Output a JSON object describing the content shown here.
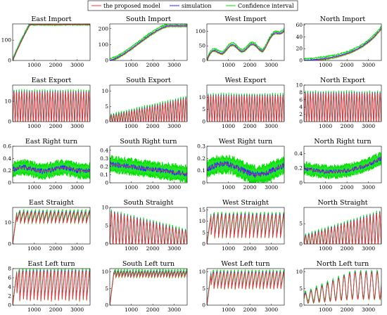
{
  "legend": {
    "placement": "top-center",
    "entries": [
      {
        "label": "the proposed model",
        "color": "#ff3030"
      },
      {
        "label": "simulation",
        "color": "#2a2aff"
      },
      {
        "label": "Confidence interval",
        "color": "#00e000"
      }
    ]
  },
  "chart_data": [
    {
      "type": "line",
      "title": "East Import",
      "xlim": [
        0,
        3600
      ],
      "ylim": [
        0,
        180
      ],
      "xticks": [
        1000,
        2000,
        3000
      ],
      "yticks": [
        0,
        100
      ],
      "shape": "saturate",
      "lo": 0,
      "hi": 180,
      "t1": 800
    },
    {
      "type": "line",
      "title": "South Import",
      "xlim": [
        0,
        3600
      ],
      "ylim": [
        0,
        230
      ],
      "xticks": [
        1000,
        2000,
        3000
      ],
      "yticks": [
        0,
        100,
        200
      ],
      "shape": "ramp",
      "lo": 0,
      "hi": 220,
      "t1": 2700
    },
    {
      "type": "line",
      "title": "West Import",
      "xlim": [
        0,
        3600
      ],
      "ylim": [
        0,
        125
      ],
      "xticks": [
        1000,
        2000,
        3000
      ],
      "yticks": [
        0,
        50,
        100
      ],
      "shape": "westimport",
      "lo": 0,
      "hi": 120
    },
    {
      "type": "line",
      "title": "North Import",
      "xlim": [
        0,
        3600
      ],
      "ylim": [
        0,
        62
      ],
      "xticks": [
        1000,
        2000,
        3000
      ],
      "yticks": [
        0,
        20,
        40,
        60
      ],
      "shape": "exp",
      "lo": 0,
      "hi": 55
    },
    {
      "type": "line",
      "title": "East Export",
      "xlim": [
        0,
        3600
      ],
      "ylim": [
        0,
        18
      ],
      "xticks": [
        1000,
        2000,
        3000
      ],
      "yticks": [
        0,
        10
      ],
      "shape": "osc",
      "lo": 0,
      "hi": 15,
      "cycles": 30
    },
    {
      "type": "line",
      "title": "South Export",
      "xlim": [
        0,
        3600
      ],
      "ylim": [
        0,
        12
      ],
      "xticks": [
        1000,
        2000,
        3000
      ],
      "yticks": [
        0,
        5,
        10
      ],
      "shape": "oscgrow",
      "lo": 0,
      "hi": 8,
      "cycles": 30
    },
    {
      "type": "line",
      "title": "West Export",
      "xlim": [
        0,
        3600
      ],
      "ylim": [
        0,
        15
      ],
      "xticks": [
        1000,
        2000,
        3000
      ],
      "yticks": [
        0,
        5,
        10
      ],
      "shape": "osc",
      "lo": 0,
      "hi": 11,
      "cycles": 30
    },
    {
      "type": "line",
      "title": "North Export",
      "xlim": [
        0,
        3600
      ],
      "ylim": [
        0,
        10
      ],
      "xticks": [
        1000,
        2000,
        3000
      ],
      "yticks": [
        0,
        2,
        4,
        6,
        8,
        10
      ],
      "shape": "osc",
      "lo": 0,
      "hi": 8,
      "cycles": 30
    },
    {
      "type": "line",
      "title": "East Right turn",
      "xlim": [
        0,
        3600
      ],
      "ylim": [
        0,
        0.6
      ],
      "xticks": [
        1000,
        2000,
        3000
      ],
      "yticks": [
        0,
        0.2,
        0.4,
        0.6
      ],
      "shape": "noisy",
      "mid": 0.22,
      "amp": 0.1
    },
    {
      "type": "line",
      "title": "South Right turn",
      "xlim": [
        0,
        3600
      ],
      "ylim": [
        0,
        0.45
      ],
      "xticks": [
        1000,
        2000,
        3000
      ],
      "yticks": [
        0,
        0.1,
        0.2,
        0.3,
        0.4
      ],
      "shape": "noisydecay",
      "mid": 0.2,
      "amp": 0.08
    },
    {
      "type": "line",
      "title": "West Right turn",
      "xlim": [
        0,
        3600
      ],
      "ylim": [
        0,
        0.3
      ],
      "xticks": [
        1000,
        2000,
        3000
      ],
      "yticks": [
        0,
        0.1,
        0.2,
        0.3
      ],
      "shape": "noisywave",
      "mid": 0.11,
      "amp": 0.06
    },
    {
      "type": "line",
      "title": "North Right turn",
      "xlim": [
        0,
        3600
      ],
      "ylim": [
        0,
        0.5
      ],
      "xticks": [
        1000,
        2000,
        3000
      ],
      "yticks": [
        0,
        0.2,
        0.4
      ],
      "shape": "noisyvalley",
      "mid": 0.15,
      "amp": 0.07
    },
    {
      "type": "line",
      "title": "East Straight",
      "xlim": [
        0,
        3600
      ],
      "ylim": [
        0,
        17
      ],
      "xticks": [
        1000,
        2000,
        3000
      ],
      "yticks": [
        0,
        10
      ],
      "shape": "oscsat",
      "lo": 10,
      "hi": 15,
      "cycles": 20
    },
    {
      "type": "line",
      "title": "South Straight",
      "xlim": [
        0,
        3600
      ],
      "ylim": [
        0,
        10
      ],
      "xticks": [
        1000,
        2000,
        3000
      ],
      "yticks": [
        0,
        5,
        10
      ],
      "shape": "oscdecay",
      "lo": 0,
      "hi": 9,
      "cycles": 24
    },
    {
      "type": "line",
      "title": "West Straight",
      "xlim": [
        0,
        3600
      ],
      "ylim": [
        0,
        16
      ],
      "xticks": [
        1000,
        2000,
        3000
      ],
      "yticks": [
        0,
        5,
        10,
        15
      ],
      "shape": "oscsat",
      "lo": 3,
      "hi": 13,
      "cycles": 20
    },
    {
      "type": "line",
      "title": "North Straight",
      "xlim": [
        0,
        3600
      ],
      "ylim": [
        0,
        9
      ],
      "xticks": [
        1000,
        2000,
        3000
      ],
      "yticks": [
        0,
        5
      ],
      "shape": "oscgrow",
      "lo": 0,
      "hi": 8,
      "cycles": 24
    },
    {
      "type": "line",
      "title": "East Left turn",
      "xlim": [
        0,
        3600
      ],
      "ylim": [
        0,
        8
      ],
      "xticks": [
        1000,
        2000,
        3000
      ],
      "yticks": [
        0,
        2,
        4,
        6,
        8
      ],
      "shape": "oscsat",
      "lo": 1,
      "hi": 7.5,
      "cycles": 22
    },
    {
      "type": "line",
      "title": "South Left turn",
      "xlim": [
        0,
        3600
      ],
      "ylim": [
        0,
        11
      ],
      "xticks": [
        1000,
        2000,
        3000
      ],
      "yticks": [
        0,
        5,
        10
      ],
      "shape": "oscsat",
      "lo": 8.5,
      "hi": 10.2,
      "cycles": 26
    },
    {
      "type": "line",
      "title": "West Left turn",
      "xlim": [
        0,
        3600
      ],
      "ylim": [
        0,
        11
      ],
      "xticks": [
        1000,
        2000,
        3000
      ],
      "yticks": [
        0,
        5,
        10
      ],
      "shape": "oscsat",
      "lo": 5,
      "hi": 10,
      "cycles": 22
    },
    {
      "type": "line",
      "title": "North Left turn",
      "xlim": [
        0,
        3600
      ],
      "ylim": [
        0,
        11
      ],
      "xticks": [
        1000,
        2000,
        3000
      ],
      "yticks": [
        0,
        5,
        10
      ],
      "shape": "oscrise",
      "lo": 3,
      "hi": 10,
      "cycles": 14
    }
  ]
}
